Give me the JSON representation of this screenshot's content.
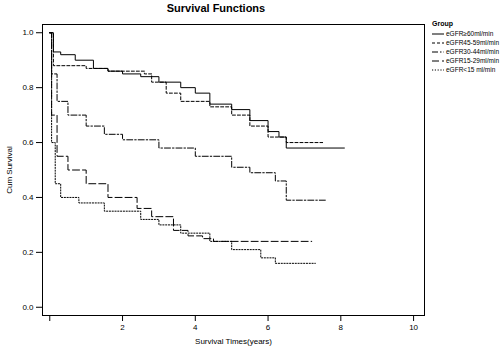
{
  "chart_data": {
    "type": "line",
    "title": "Survival Functions",
    "x_label": "Survival Times(years)",
    "y_label": "Cum Survival",
    "legend_title": "Group",
    "legend": "right",
    "grid": false,
    "xlim": [
      -0.2,
      10.3
    ],
    "xticks": [
      0,
      2,
      4,
      6,
      8,
      10
    ],
    "ylim": [
      -0.03,
      1.03
    ],
    "yticks": [
      {
        "value": 0,
        "label": "0.0"
      },
      {
        "value": 0.2,
        "label": "0.2"
      },
      {
        "value": 0.4,
        "label": "0.4"
      },
      {
        "value": 0.6,
        "label": "0.6"
      },
      {
        "value": 0.8,
        "label": "0.8"
      },
      {
        "value": 1,
        "label": "1.0"
      }
    ],
    "series": [
      {
        "name": "eGFR≥60ml/min",
        "color": "#000000",
        "line_style": "solid",
        "x": [
          0,
          0.1,
          0.3,
          0.7,
          1.2,
          1.6,
          2,
          2.5,
          3,
          3.6,
          4,
          4.4,
          5,
          5.5,
          6,
          6.3,
          6.5,
          8.1
        ],
        "values": [
          1.0,
          0.93,
          0.92,
          0.9,
          0.87,
          0.86,
          0.85,
          0.84,
          0.82,
          0.8,
          0.78,
          0.74,
          0.72,
          0.68,
          0.64,
          0.62,
          0.58,
          0.58
        ]
      },
      {
        "name": "eGFR45-59ml/min",
        "color": "#000000",
        "line_style": "short_dash",
        "x": [
          0,
          0.1,
          1,
          1.6,
          2.6,
          2.8,
          3.2,
          3.6,
          4.4,
          5,
          5.5,
          6,
          6.5,
          7.5
        ],
        "values": [
          1.0,
          0.88,
          0.87,
          0.86,
          0.85,
          0.82,
          0.78,
          0.75,
          0.73,
          0.7,
          0.66,
          0.62,
          0.6,
          0.6
        ]
      },
      {
        "name": "eGFR30-44ml/min",
        "color": "#000000",
        "line_style": "dashdot",
        "x": [
          0,
          0.05,
          0.2,
          0.5,
          1,
          1.5,
          2,
          3,
          4,
          5,
          5.5,
          6.2,
          6.5,
          7.6
        ],
        "values": [
          1.0,
          0.85,
          0.75,
          0.7,
          0.66,
          0.63,
          0.61,
          0.58,
          0.55,
          0.51,
          0.49,
          0.46,
          0.39,
          0.39
        ]
      },
      {
        "name": "eGFR15-29ml/min",
        "color": "#000000",
        "line_style": "dashed",
        "x": [
          0,
          0.05,
          0.2,
          0.5,
          1,
          1.6,
          2.4,
          2.8,
          3.4,
          3.8,
          4.2,
          4.5,
          7.2
        ],
        "values": [
          1.0,
          0.7,
          0.55,
          0.5,
          0.45,
          0.4,
          0.36,
          0.33,
          0.28,
          0.26,
          0.25,
          0.24,
          0.24
        ]
      },
      {
        "name": "eGFR<15 ml/min",
        "color": "#000000",
        "line_style": "dotted",
        "x": [
          0,
          0.05,
          0.15,
          0.3,
          0.8,
          1.5,
          2.5,
          3,
          3.6,
          4.4,
          5,
          5.8,
          6.2,
          7.3
        ],
        "values": [
          1.0,
          0.6,
          0.45,
          0.4,
          0.38,
          0.35,
          0.32,
          0.3,
          0.27,
          0.24,
          0.21,
          0.18,
          0.16,
          0.16
        ]
      }
    ]
  }
}
